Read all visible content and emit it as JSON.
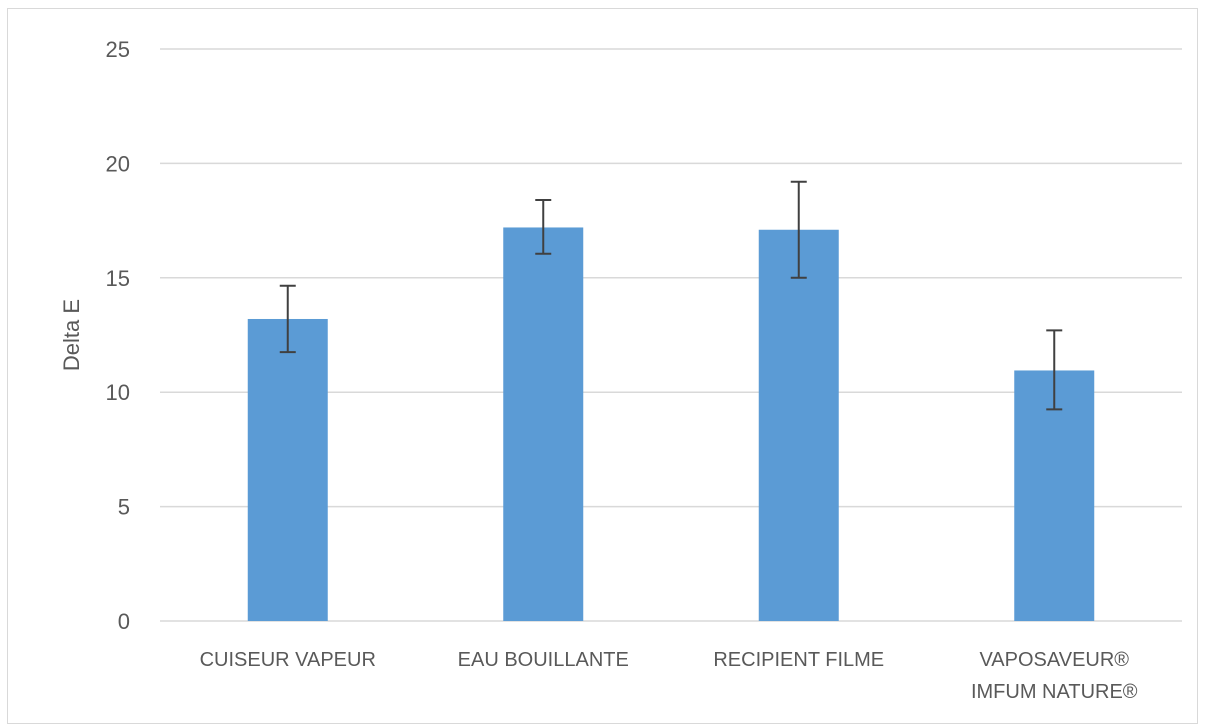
{
  "chart_data": {
    "type": "bar",
    "title": "",
    "xlabel": "",
    "ylabel": "Delta E",
    "ylim": [
      0,
      25
    ],
    "yticks": [
      0,
      5,
      10,
      15,
      20,
      25
    ],
    "ytick_labels": [
      "0",
      "5",
      "10",
      "15",
      "20",
      "25"
    ],
    "grid": true,
    "legend": "none",
    "categories": [
      [
        "CUISEUR VAPEUR"
      ],
      [
        "EAU BOUILLANTE"
      ],
      [
        "RECIPIENT FILME"
      ],
      [
        "VAPOSAVEUR®",
        "IMFUM NATURE®"
      ]
    ],
    "series": [
      {
        "values": [
          13.2,
          17.2,
          17.1,
          10.95
        ],
        "error_low": [
          11.75,
          16.05,
          15.0,
          9.25
        ],
        "error_high": [
          14.65,
          18.4,
          19.2,
          12.7
        ],
        "color": "#5b9bd5"
      }
    ],
    "colors": {
      "grid": "#d9d9d9",
      "axis": "#d9d9d9",
      "error_bar": "#404040",
      "text": "#595959"
    }
  }
}
